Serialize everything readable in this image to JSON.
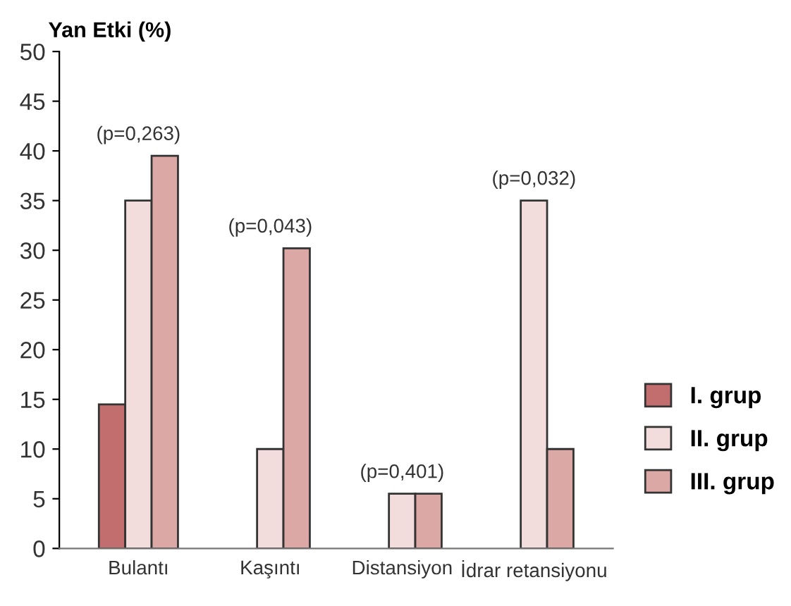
{
  "chart_data": {
    "type": "bar",
    "ylabel": "Yan Etki (%)",
    "categories": [
      "Bulantı",
      "Kaşıntı",
      "Distansiyon",
      "İdrar retansiyonu"
    ],
    "series": [
      {
        "name": "I. grup",
        "color": "#c26e6f",
        "values": [
          14.5,
          0,
          0,
          0
        ]
      },
      {
        "name": "II. grup",
        "color": "#f2dcdc",
        "values": [
          35,
          10,
          5.5,
          35
        ]
      },
      {
        "name": "III. grup",
        "color": "#dca8a6",
        "values": [
          39.5,
          30.2,
          5.5,
          10
        ]
      }
    ],
    "ylim": [
      0,
      50
    ],
    "yticks": [
      0,
      5,
      10,
      15,
      20,
      25,
      30,
      35,
      40,
      45,
      50
    ],
    "annotations": [
      "(p=0,263)",
      "(p=0,043)",
      "(p=0,401)",
      "(p=0,032)"
    ],
    "grid": false,
    "legend": "right"
  }
}
